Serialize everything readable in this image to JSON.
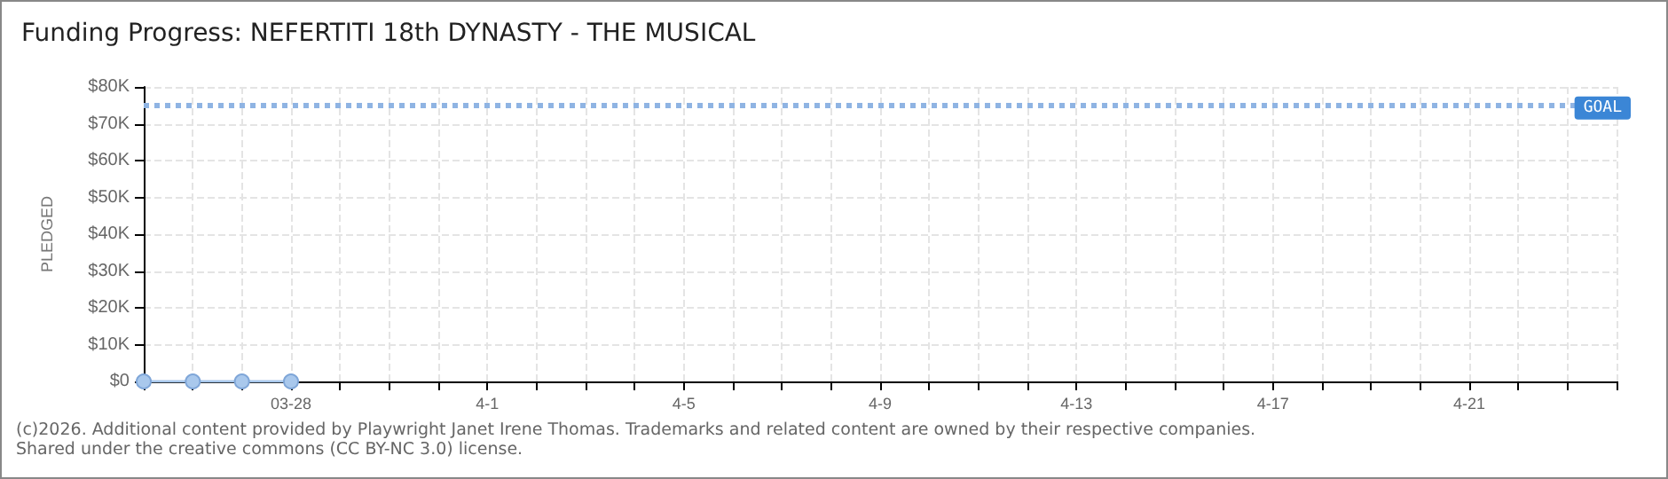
{
  "chart_data": {
    "type": "line",
    "title": "Funding Progress: NEFERTITI 18th DYNASTY - THE MUSICAL",
    "ylabel": "PLEDGED",
    "x": [
      "--03-25",
      "--03-26",
      "--03-27",
      "--03-28"
    ],
    "series": [
      {
        "color": "#a9c8ec",
        "values": [
          0,
          0,
          0,
          0
        ]
      }
    ],
    "marker": "circle",
    "xlim": [
      "--03-25",
      "--04-24"
    ],
    "xticks": [
      {
        "value": "--03-25",
        "label": null
      },
      {
        "value": "--03-26",
        "label": null
      },
      {
        "value": "--03-27",
        "label": null
      },
      {
        "value": "--03-28",
        "label": "03-28"
      },
      {
        "value": "--03-29",
        "label": null
      },
      {
        "value": "--03-30",
        "label": null
      },
      {
        "value": "--03-31",
        "label": null
      },
      {
        "value": "--04-01",
        "label": "4-1"
      },
      {
        "value": "--04-02",
        "label": null
      },
      {
        "value": "--04-03",
        "label": null
      },
      {
        "value": "--04-04",
        "label": null
      },
      {
        "value": "--04-05",
        "label": "4-5"
      },
      {
        "value": "--04-06",
        "label": null
      },
      {
        "value": "--04-07",
        "label": null
      },
      {
        "value": "--04-08",
        "label": null
      },
      {
        "value": "--04-09",
        "label": "4-9"
      },
      {
        "value": "--04-10",
        "label": null
      },
      {
        "value": "--04-11",
        "label": null
      },
      {
        "value": "--04-12",
        "label": null
      },
      {
        "value": "--04-13",
        "label": "4-13"
      },
      {
        "value": "--04-14",
        "label": null
      },
      {
        "value": "--04-15",
        "label": null
      },
      {
        "value": "--04-16",
        "label": null
      },
      {
        "value": "--04-17",
        "label": "4-17"
      },
      {
        "value": "--04-18",
        "label": null
      },
      {
        "value": "--04-19",
        "label": null
      },
      {
        "value": "--04-20",
        "label": null
      },
      {
        "value": "--04-21",
        "label": "4-21"
      },
      {
        "value": "--04-22",
        "label": null
      },
      {
        "value": "--04-23",
        "label": null
      },
      {
        "value": "--04-24",
        "label": null
      }
    ],
    "ylim": [
      0,
      80000
    ],
    "yticks": [
      {
        "value": 0,
        "label": "$0"
      },
      {
        "value": 10000,
        "label": "$10K"
      },
      {
        "value": 20000,
        "label": "$20K"
      },
      {
        "value": 30000,
        "label": "$30K"
      },
      {
        "value": 40000,
        "label": "$40K"
      },
      {
        "value": 50000,
        "label": "$50K"
      },
      {
        "value": 60000,
        "label": "$60K"
      },
      {
        "value": 70000,
        "label": "$70K"
      },
      {
        "value": 80000,
        "label": "$80K"
      }
    ],
    "grid": true,
    "ref_lines": [
      {
        "axis": "y",
        "value": 75000,
        "label": "GOAL",
        "color": "#8fb4e3",
        "line_style": "dotted"
      }
    ],
    "annotations": [
      "(c)2026. Additional content provided by Playwright Janet Irene Thomas. Trademarks and related content are owned by their respective companies.",
      "Shared under the creative commons (CC BY-NC 3.0) license."
    ]
  }
}
